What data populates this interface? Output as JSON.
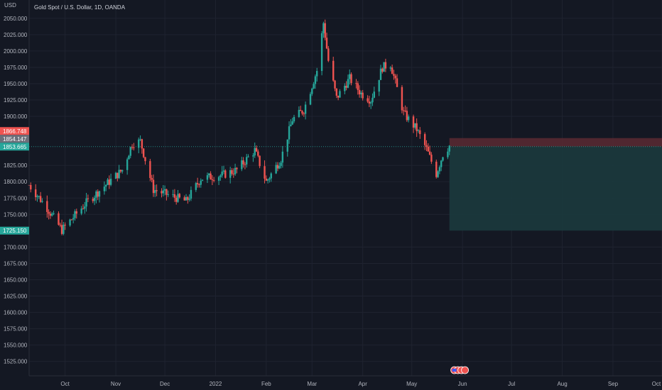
{
  "header": {
    "currency": "USD",
    "symbol_title": "Gold Spot / U.S. Dollar, 1D, OANDA"
  },
  "colors": {
    "background": "#141823",
    "grid": "#1f2330",
    "up": "#26a69a",
    "down": "#ef5350",
    "stop_zone": "#5a2a33",
    "target_zone": "#1b3a3d",
    "axis_text": "#b2b5be"
  },
  "price_badges": [
    {
      "label": "1866.748",
      "value": 1866.748,
      "color": "#ef5350"
    },
    {
      "label": "1854.147",
      "value": 1854.147,
      "color": "#6b6f7a"
    },
    {
      "label": "1853.665",
      "value": 1853.665,
      "color": "#26a69a"
    },
    {
      "label": "1725.150",
      "value": 1725.15,
      "color": "#26a69a"
    }
  ],
  "chart_data": {
    "type": "candlestick",
    "y_axis": {
      "ticks": [
        2050,
        2025,
        2000,
        1975,
        1950,
        1925,
        1900,
        1825,
        1800,
        1775,
        1750,
        1700,
        1675,
        1650,
        1625,
        1600,
        1575,
        1550,
        1525
      ],
      "tick_labels": [
        "2050.000",
        "2025.000",
        "2000.000",
        "1975.000",
        "1950.000",
        "1925.000",
        "1900.000",
        "1825.000",
        "1800.000",
        "1775.000",
        "1750.000",
        "1700.000",
        "1675.000",
        "1650.000",
        "1625.000",
        "1600.000",
        "1575.000",
        "1550.000",
        "1525.000"
      ],
      "range": [
        1503,
        2078
      ]
    },
    "x_axis": {
      "labels": [
        "Oct",
        "Nov",
        "Dec",
        "2022",
        "Feb",
        "Mar",
        "Apr",
        "May",
        "Jun",
        "Jul",
        "Aug",
        "Sep",
        "Oct"
      ],
      "dates": [
        "2021-10-01",
        "2021-11-01",
        "2021-12-01",
        "2022-01-01",
        "2022-02-01",
        "2022-03-01",
        "2022-04-01",
        "2022-05-01",
        "2022-06-01",
        "2022-07-01",
        "2022-08-01",
        "2022-09-01",
        "2022-10-01"
      ],
      "range": [
        "2021-09-09",
        "2022-10-01"
      ]
    },
    "price_anchors": [
      {
        "date": "2021-09-09",
        "close": 1795
      },
      {
        "date": "2021-09-20",
        "close": 1760
      },
      {
        "date": "2021-09-29",
        "close": 1726
      },
      {
        "date": "2021-10-14",
        "close": 1768
      },
      {
        "date": "2021-10-28",
        "close": 1800
      },
      {
        "date": "2021-11-05",
        "close": 1818
      },
      {
        "date": "2021-11-11",
        "close": 1858
      },
      {
        "date": "2021-11-16",
        "close": 1862
      },
      {
        "date": "2021-11-24",
        "close": 1788
      },
      {
        "date": "2021-12-14",
        "close": 1770
      },
      {
        "date": "2021-12-23",
        "close": 1805
      },
      {
        "date": "2022-01-05",
        "close": 1810
      },
      {
        "date": "2022-01-14",
        "close": 1818
      },
      {
        "date": "2022-01-25",
        "close": 1848
      },
      {
        "date": "2022-02-01",
        "close": 1800
      },
      {
        "date": "2022-02-10",
        "close": 1835
      },
      {
        "date": "2022-02-17",
        "close": 1895
      },
      {
        "date": "2022-02-24",
        "close": 1910
      },
      {
        "date": "2022-03-04",
        "close": 1970
      },
      {
        "date": "2022-03-08",
        "close": 2043
      },
      {
        "date": "2022-03-11",
        "close": 1985
      },
      {
        "date": "2022-03-16",
        "close": 1928
      },
      {
        "date": "2022-03-24",
        "close": 1958
      },
      {
        "date": "2022-03-31",
        "close": 1935
      },
      {
        "date": "2022-04-06",
        "close": 1925
      },
      {
        "date": "2022-04-13",
        "close": 1975
      },
      {
        "date": "2022-04-18",
        "close": 1980
      },
      {
        "date": "2022-04-26",
        "close": 1905
      },
      {
        "date": "2022-05-04",
        "close": 1880
      },
      {
        "date": "2022-05-10",
        "close": 1850
      },
      {
        "date": "2022-05-16",
        "close": 1812
      },
      {
        "date": "2022-05-20",
        "close": 1842
      },
      {
        "date": "2022-05-24",
        "close": 1855
      }
    ],
    "position": {
      "type": "short",
      "start_date": "2022-05-24",
      "end_date": "2022-10-01",
      "stop": 1866.748,
      "entry": 1853.665,
      "target": 1725.15
    },
    "current_price": 1853.665
  }
}
